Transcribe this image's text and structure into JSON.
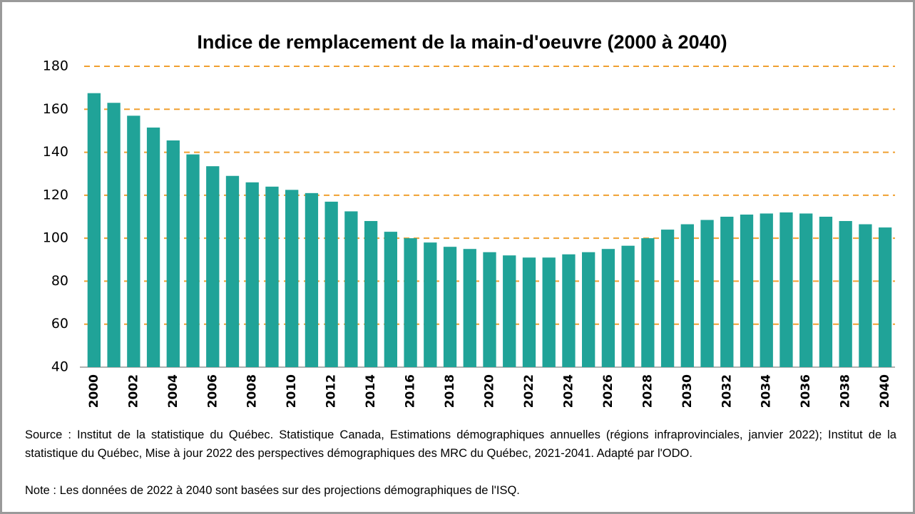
{
  "chart_data": {
    "type": "bar",
    "title": "Indice de remplacement de la main-d'oeuvre (2000 à 2040)",
    "categories": [
      "2000",
      null,
      "2002",
      null,
      "2004",
      null,
      "2006",
      null,
      "2008",
      null,
      "2010",
      null,
      "2012",
      null,
      "2014",
      null,
      "2016",
      null,
      "2018",
      null,
      "2020",
      null,
      "2022",
      null,
      "2024",
      null,
      "2026",
      null,
      "2028",
      null,
      "2030",
      null,
      "2032",
      null,
      "2034",
      null,
      "2036",
      null,
      "2038",
      null,
      "2040"
    ],
    "values": [
      167.5,
      163,
      157,
      151.5,
      145.5,
      139,
      133.5,
      129,
      126,
      124,
      122.5,
      121,
      117,
      112.5,
      108,
      103,
      100,
      98,
      96,
      95,
      93.5,
      92,
      91,
      91,
      92.5,
      93.5,
      95,
      96.5,
      100,
      104,
      106.5,
      108.5,
      110,
      111,
      111.5,
      112,
      111.5,
      110,
      108,
      106.5,
      105
    ],
    "color": "#20a398",
    "ylim": [
      40,
      180
    ],
    "yticks": [
      40,
      60,
      80,
      100,
      120,
      140,
      160,
      180
    ],
    "grid": true,
    "grid_color": "#f0a030",
    "source": "Source : Institut de la statistique du Québec. Statistique Canada, Estimations démographiques annuelles (régions infraprovinciales, janvier 2022); Institut de la statistique du Québec, Mise à jour 2022 des perspectives démographiques des MRC du Québec, 2021-2041. Adapté par l'ODO.",
    "note": "Note : Les données de 2022 à 2040 sont basées sur des projections démographiques de l'ISQ."
  }
}
